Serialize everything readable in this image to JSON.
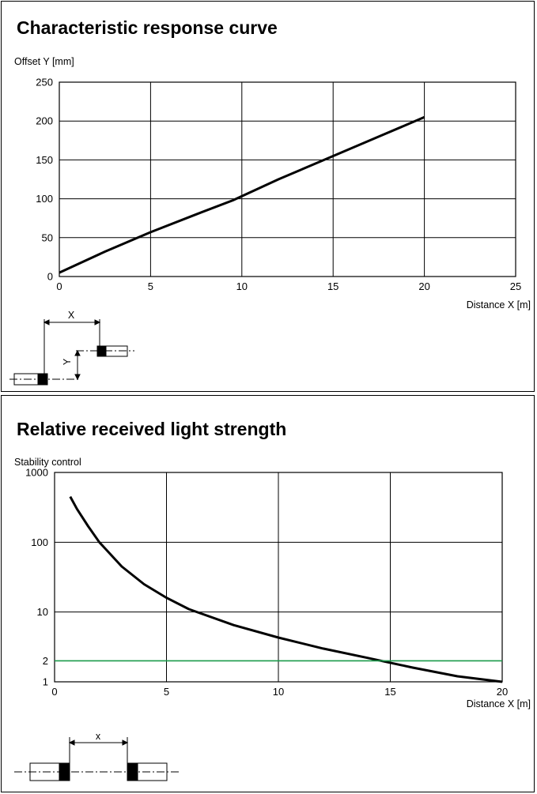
{
  "chart_data": [
    {
      "type": "line",
      "title": "Characteristic response curve",
      "ylabel": "Offset Y [mm]",
      "xlabel": "Distance X [m]",
      "xlim": [
        0,
        25
      ],
      "ylim": [
        0,
        250
      ],
      "x_ticks": [
        "0",
        "5",
        "10",
        "15",
        "20",
        "25"
      ],
      "y_ticks": [
        "0",
        "50",
        "100",
        "150",
        "200",
        "250"
      ],
      "grid": true,
      "series": [
        {
          "color": "#000000",
          "x": [
            0,
            2.5,
            5,
            7.5,
            9.5,
            12,
            15,
            17.5,
            20
          ],
          "y": [
            5,
            32,
            57,
            80,
            98,
            125,
            155,
            180,
            205
          ]
        }
      ],
      "diagram_labels": {
        "x": "X",
        "y": "Y"
      }
    },
    {
      "type": "line",
      "title": "Relative received light strength",
      "ylabel": "Stability control",
      "xlabel": "Distance X [m]",
      "xlim": [
        0,
        20
      ],
      "ylim": [
        1,
        1000
      ],
      "yscale": "log",
      "x_ticks": [
        "0",
        "5",
        "10",
        "15",
        "20"
      ],
      "y_ticks": [
        "1",
        "2",
        "10",
        "100",
        "1000"
      ],
      "grid": true,
      "series": [
        {
          "color": "#000000",
          "x": [
            0.7,
            1,
            1.5,
            2,
            3,
            4,
            5,
            6,
            8,
            10,
            12,
            14,
            16,
            18,
            20
          ],
          "y": [
            450,
            300,
            170,
            100,
            45,
            25,
            16,
            11,
            6.5,
            4.3,
            3.0,
            2.2,
            1.6,
            1.2,
            1.0
          ]
        },
        {
          "color": "#1a9a4a",
          "x": [
            0,
            20
          ],
          "y": [
            2,
            2
          ]
        }
      ],
      "diagram_labels": {
        "x": "x"
      }
    }
  ]
}
